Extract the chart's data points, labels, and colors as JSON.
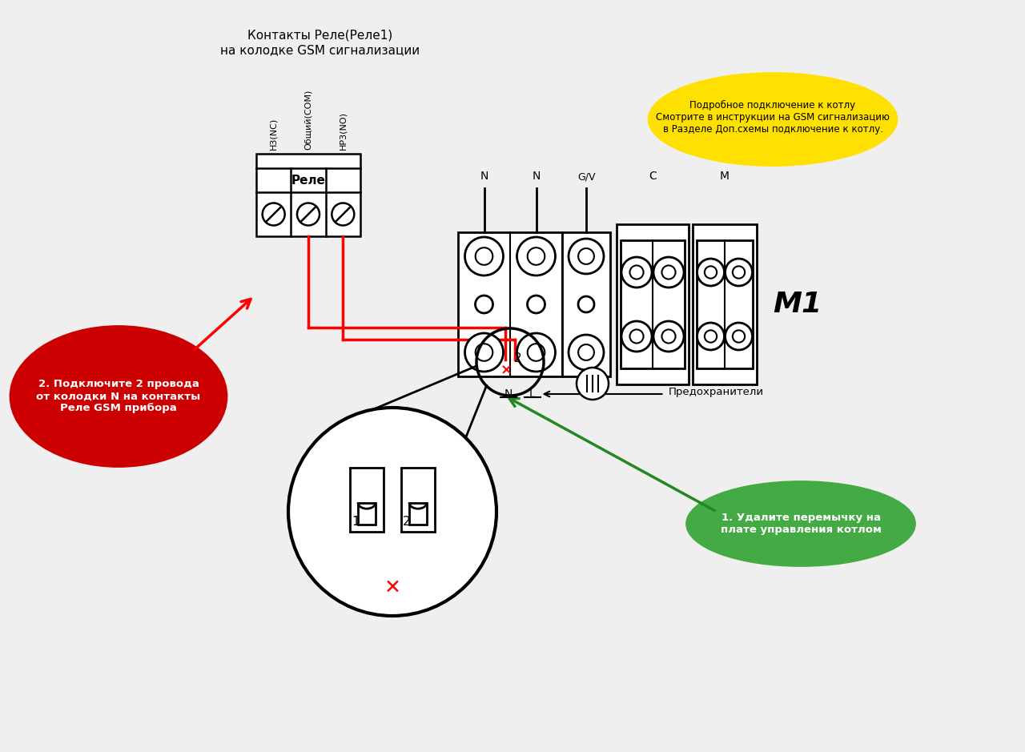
{
  "bg_color": "#efefef",
  "title_top": "Контакты Реле(Реле1)",
  "title_top2": "на колодке GSM сигнализации",
  "yellow_bubble_text": "Подробное подключение к котлу\nСмотрите в инструкции на GSM сигнализацию\nв Разделе Доп.схемы подключение к котлу.",
  "red_bubble_text": "2. Подключите 2 провода\nот колодки N на контакты\nРеле GSM прибора",
  "green_bubble_text": "1. Удалите перемычку на\nплате управления котлом",
  "relay_label": "Реле",
  "relay_terminals": [
    "Н3(NC)",
    "Общий(COM)",
    "НР3(NO)"
  ],
  "predohraniteli_label": "Предохранители",
  "M1_label": "M1"
}
